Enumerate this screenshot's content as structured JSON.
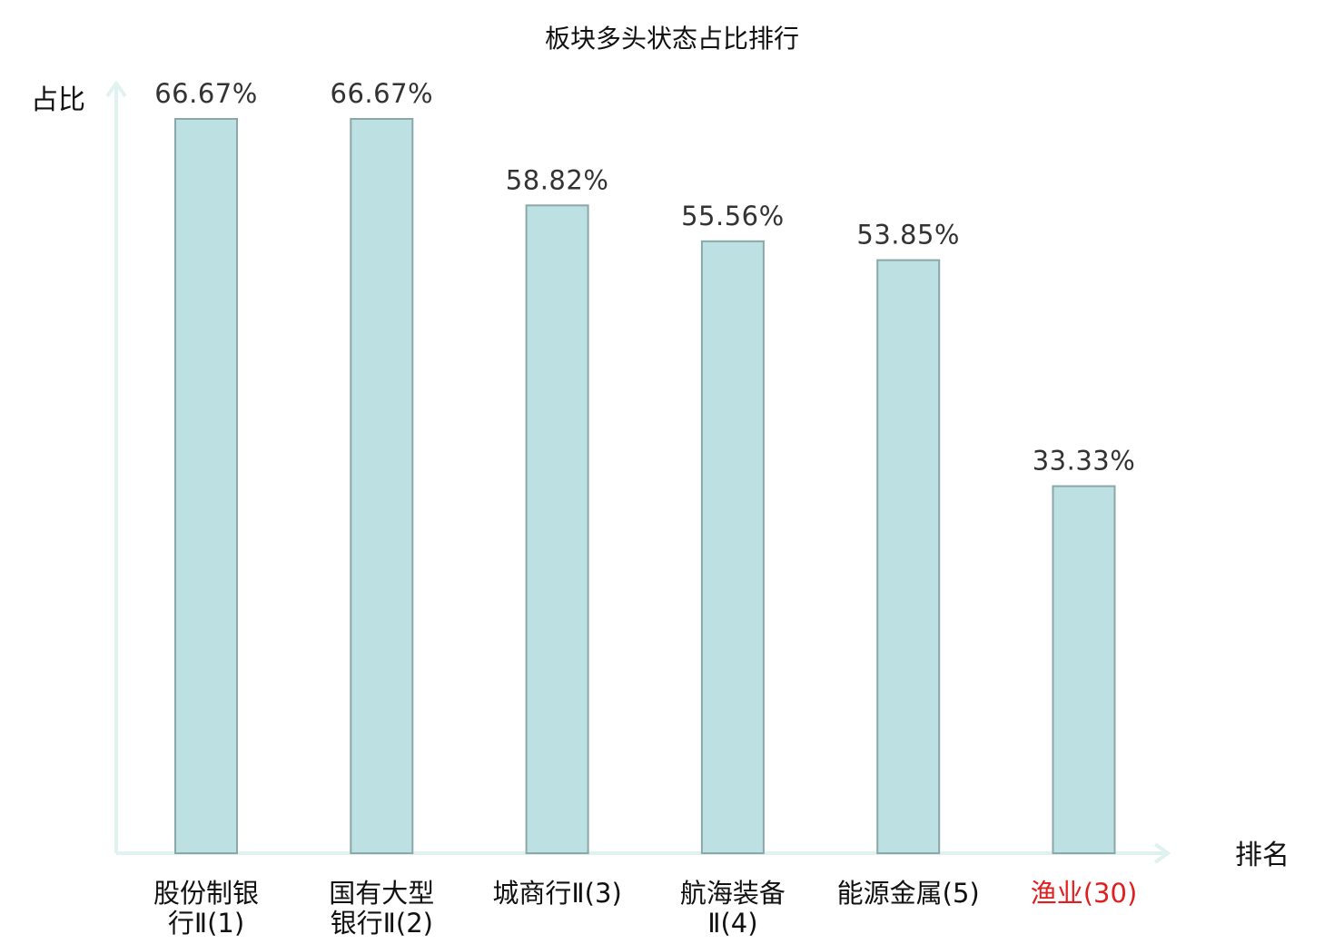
{
  "chart_data": {
    "type": "bar",
    "title": "板块多头状态占比排行",
    "ylabel": "占比",
    "xlabel": "排名",
    "categories": [
      [
        "股份制银",
        "行Ⅱ(1)"
      ],
      [
        "国有大型",
        "银行Ⅱ(2)"
      ],
      [
        "城商行Ⅱ(3)"
      ],
      [
        "航海装备",
        "Ⅱ(4)"
      ],
      [
        "能源金属(5)"
      ],
      [
        "渔业(30)"
      ]
    ],
    "values": [
      66.67,
      66.67,
      58.82,
      55.56,
      53.85,
      33.33
    ],
    "value_labels": [
      "66.67%",
      "66.67%",
      "58.82%",
      "55.56%",
      "53.85%",
      "33.33%"
    ],
    "highlight_index": 5,
    "ylim": [
      0,
      66.67
    ],
    "grid": false,
    "colors": {
      "bar_fill": "#bde0e3",
      "bar_stroke": "#8aa7aa",
      "axis": "#dff2f0",
      "label_text": "#333333",
      "highlight_text": "#e02020",
      "normal_text": "#111111"
    }
  }
}
